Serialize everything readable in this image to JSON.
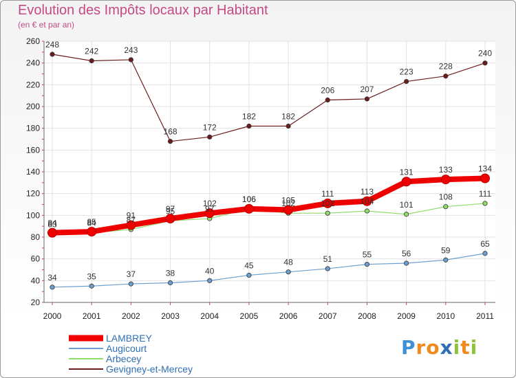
{
  "chart_data": {
    "type": "line",
    "title": "Evolution des Impôts locaux par Habitant",
    "subtitle": "(en € et par an)",
    "x": [
      "2000",
      "2001",
      "2002",
      "2003",
      "2004",
      "2005",
      "2006",
      "2007",
      "2008",
      "2009",
      "2010",
      "2011"
    ],
    "ylim": [
      20,
      260
    ],
    "yticks": [
      20,
      40,
      60,
      80,
      100,
      120,
      140,
      160,
      180,
      200,
      220,
      240,
      260
    ],
    "grid": true,
    "legend": "bottom-left",
    "series": [
      {
        "name": "Gevigney-et-Mercey",
        "color": "#6b1c1c",
        "values": [
          248,
          242,
          243,
          168,
          172,
          182,
          182,
          206,
          207,
          223,
          228,
          240
        ],
        "labels": [
          "248",
          "242",
          "243",
          "168",
          "172",
          "182",
          "182",
          "206",
          "207",
          "223",
          "228",
          "240"
        ]
      },
      {
        "name": "Arbecey",
        "color": "#8fdc6a",
        "values": [
          83,
          84,
          87,
          95,
          97,
          106,
          102,
          102,
          104,
          101,
          108,
          111
        ],
        "labels": [
          "83",
          "84",
          "87",
          "95",
          "97",
          "106",
          "102",
          "102",
          "104",
          "101",
          "108",
          "111"
        ]
      },
      {
        "name": "Augicourt",
        "color": "#6a9fd0",
        "values": [
          34,
          35,
          37,
          38,
          40,
          45,
          48,
          51,
          55,
          56,
          59,
          65
        ],
        "labels": [
          "34",
          "35",
          "37",
          "38",
          "40",
          "45",
          "48",
          "51",
          "55",
          "56",
          "59",
          "65"
        ]
      },
      {
        "name": "LAMBREY",
        "color": "#ee0000",
        "values": [
          84,
          85,
          91,
          97,
          102,
          106,
          105,
          111,
          113,
          131,
          133,
          134
        ],
        "labels": [
          "84",
          "85",
          "91",
          "97",
          "102",
          "106",
          "105",
          "111",
          "113",
          "131",
          "133",
          "134"
        ]
      }
    ],
    "legend_order": [
      "LAMBREY",
      "Augicourt",
      "Arbecey",
      "Gevigney-et-Mercey"
    ]
  },
  "logo": {
    "text": "Proxiti",
    "letters": [
      "P",
      "r",
      "o",
      "x",
      "i",
      "t",
      "i"
    ],
    "colors": [
      "#3d8fd6",
      "#f08a1d",
      "#f08a1d",
      "#2e6fb8",
      "#8fc33a",
      "#f08a1d",
      "#8fc33a"
    ]
  }
}
